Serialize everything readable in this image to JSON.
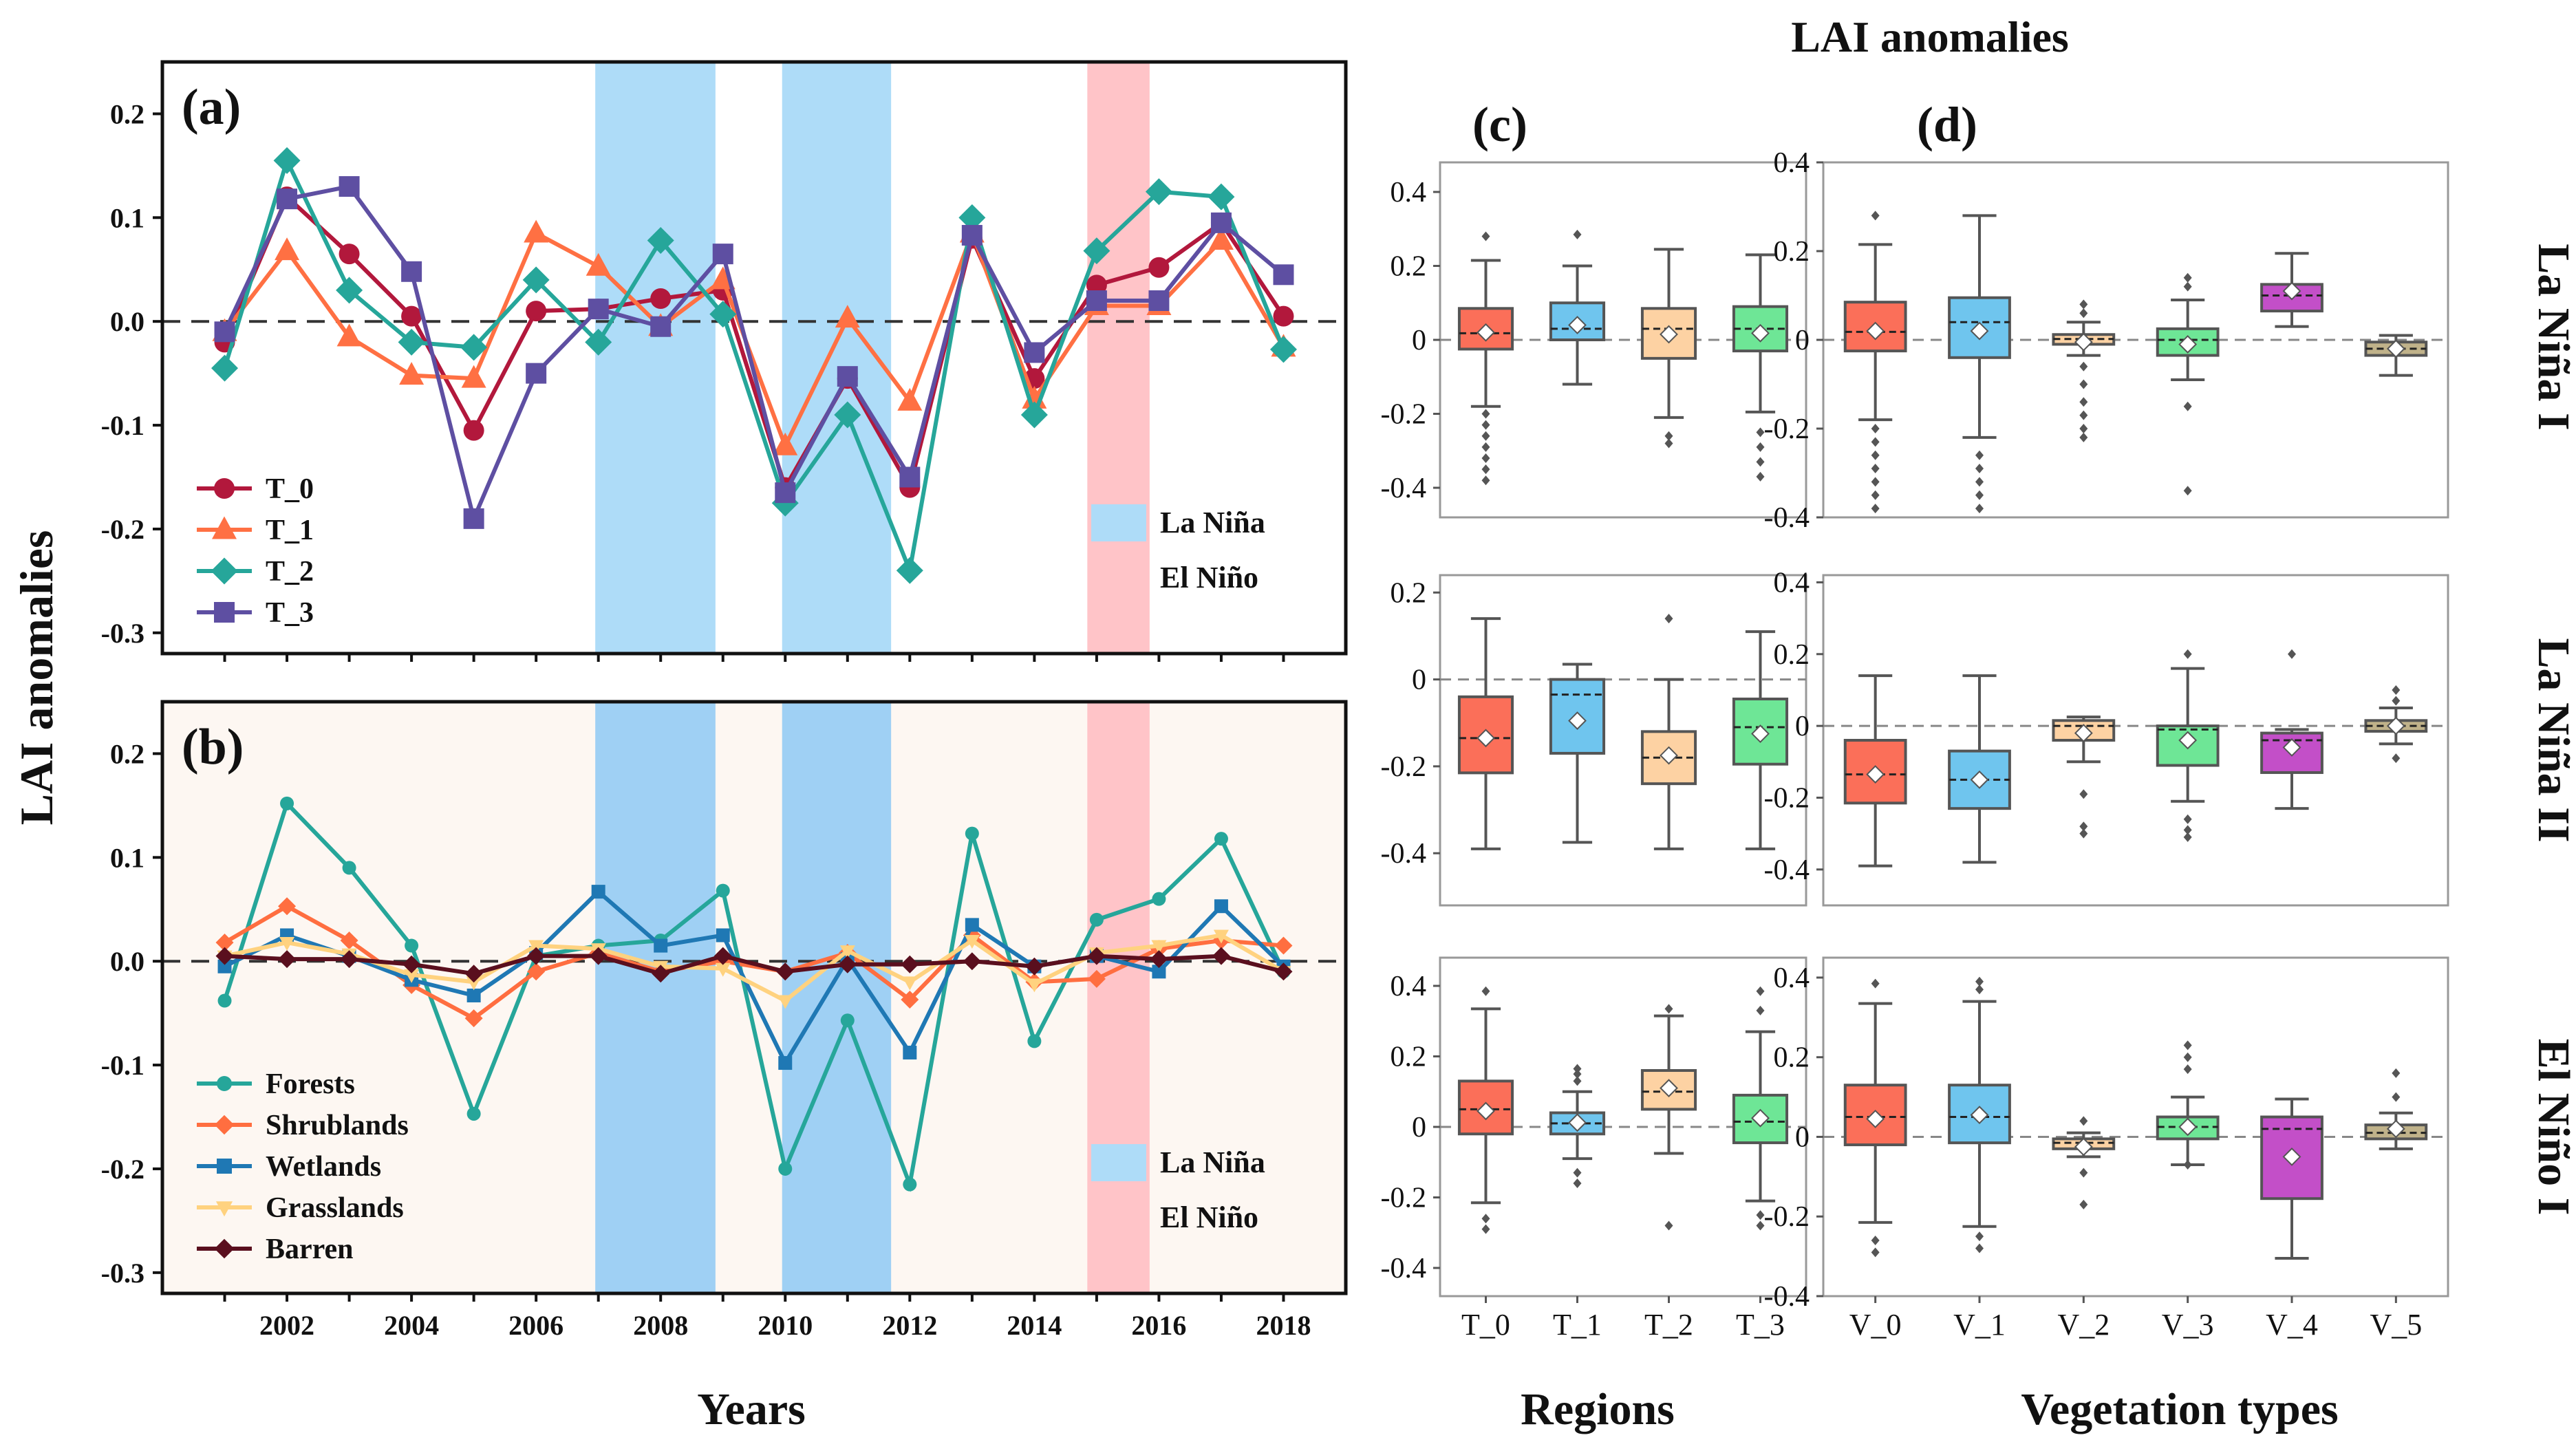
{
  "chart_data": [
    {
      "id": "a",
      "type": "line",
      "panel_label": "(a)",
      "x": [
        2001,
        2002,
        2003,
        2004,
        2005,
        2006,
        2007,
        2008,
        2009,
        2010,
        2011,
        2012,
        2013,
        2014,
        2015,
        2016,
        2017,
        2018
      ],
      "x_ticks": [
        "2002",
        "2004",
        "2006",
        "2008",
        "2010",
        "2012",
        "2014",
        "2016",
        "2018"
      ],
      "xlim": [
        2000,
        2019
      ],
      "ylim": [
        -0.32,
        0.25
      ],
      "y_ticks": [
        "0.2",
        "0.1",
        "0.0",
        "-0.1",
        "-0.2",
        "-0.3"
      ],
      "background": "#ffffff",
      "series": [
        {
          "name": "T_0",
          "color": "#b2183c",
          "marker": "circle",
          "values": [
            -0.02,
            0.12,
            0.065,
            0.005,
            -0.105,
            0.01,
            0.012,
            0.022,
            0.03,
            -0.16,
            -0.055,
            -0.16,
            0.08,
            -0.055,
            0.035,
            0.052,
            0.095,
            0.005
          ]
        },
        {
          "name": "T_1",
          "color": "#ff7043",
          "marker": "triangle",
          "values": [
            -0.01,
            0.068,
            -0.015,
            -0.052,
            -0.055,
            0.085,
            0.053,
            -0.005,
            0.04,
            -0.12,
            0.003,
            -0.077,
            0.085,
            -0.075,
            0.015,
            0.015,
            0.078,
            -0.025
          ]
        },
        {
          "name": "T_2",
          "color": "#26a69a",
          "marker": "diamond",
          "values": [
            -0.045,
            0.155,
            0.03,
            -0.02,
            -0.025,
            0.04,
            -0.02,
            0.078,
            0.007,
            -0.175,
            -0.09,
            -0.24,
            0.1,
            -0.09,
            0.068,
            0.125,
            0.12,
            -0.027
          ]
        },
        {
          "name": "T_3",
          "color": "#5e4fa2",
          "marker": "square",
          "values": [
            -0.01,
            0.118,
            0.13,
            0.048,
            -0.19,
            -0.05,
            0.012,
            -0.005,
            0.065,
            -0.165,
            -0.053,
            -0.15,
            0.083,
            -0.03,
            0.02,
            0.02,
            0.095,
            0.045
          ]
        }
      ],
      "shaded": [
        {
          "from": 2006.95,
          "to": 2008.88,
          "kind": "La Niña"
        },
        {
          "from": 2009.95,
          "to": 2011.7,
          "kind": "La Niña"
        },
        {
          "from": 2014.85,
          "to": 2015.85,
          "kind": "El Niño"
        }
      ],
      "legend": [
        "T_0",
        "T_1",
        "T_2",
        "T_3"
      ],
      "legend_position": "bottom-left",
      "shade_legend": [
        "La Niña",
        "El Niño"
      ],
      "shade_legend_position": "bottom-right"
    },
    {
      "id": "b",
      "type": "line",
      "panel_label": "(b)",
      "x": [
        2001,
        2002,
        2003,
        2004,
        2005,
        2006,
        2007,
        2008,
        2009,
        2010,
        2011,
        2012,
        2013,
        2014,
        2015,
        2016,
        2017,
        2018
      ],
      "x_ticks": [
        "2002",
        "2004",
        "2006",
        "2008",
        "2010",
        "2012",
        "2014",
        "2016",
        "2018"
      ],
      "xlim": [
        2000,
        2019
      ],
      "ylim": [
        -0.32,
        0.25
      ],
      "y_ticks": [
        "0.2",
        "0.1",
        "0.0",
        "-0.1",
        "-0.2",
        "-0.3"
      ],
      "background": "#fdf7f2",
      "series": [
        {
          "name": "Forests",
          "color": "#26a69a",
          "marker": "circle",
          "values": [
            -0.038,
            0.152,
            0.09,
            0.015,
            -0.147,
            0.005,
            0.015,
            0.02,
            0.068,
            -0.2,
            -0.057,
            -0.215,
            0.123,
            -0.077,
            0.04,
            0.06,
            0.118,
            -0.01
          ]
        },
        {
          "name": "Shrublands",
          "color": "#ff6e40",
          "marker": "diamond",
          "values": [
            0.018,
            0.053,
            0.02,
            -0.023,
            -0.055,
            -0.01,
            0.008,
            -0.01,
            0.0,
            -0.01,
            0.008,
            -0.037,
            0.025,
            -0.02,
            -0.017,
            0.012,
            0.02,
            0.015
          ]
        },
        {
          "name": "Wetlands",
          "color": "#1f78b4",
          "marker": "square",
          "values": [
            -0.005,
            0.025,
            0.005,
            -0.018,
            -0.033,
            0.008,
            0.067,
            0.015,
            0.025,
            -0.098,
            0.002,
            -0.088,
            0.035,
            -0.005,
            0.005,
            -0.01,
            0.053,
            -0.005
          ]
        },
        {
          "name": "Grasslands",
          "color": "#ffd27f",
          "marker": "triangle-down",
          "values": [
            0.005,
            0.018,
            0.007,
            -0.013,
            -0.02,
            0.015,
            0.012,
            -0.005,
            -0.007,
            -0.038,
            0.01,
            -0.02,
            0.02,
            -0.022,
            0.008,
            0.015,
            0.025,
            -0.01
          ]
        },
        {
          "name": "Barren",
          "color": "#5a0f1e",
          "marker": "diamond",
          "values": [
            0.005,
            0.002,
            0.002,
            -0.003,
            -0.012,
            0.005,
            0.005,
            -0.012,
            0.005,
            -0.01,
            -0.003,
            -0.003,
            0.0,
            -0.005,
            0.005,
            0.002,
            0.005,
            -0.01
          ]
        }
      ],
      "shaded": [
        {
          "from": 2006.95,
          "to": 2008.88,
          "kind": "La Niña"
        },
        {
          "from": 2009.95,
          "to": 2011.7,
          "kind": "La Niña"
        },
        {
          "from": 2014.85,
          "to": 2015.85,
          "kind": "El Niño"
        }
      ],
      "legend": [
        "Forests",
        "Shrublands",
        "Wetlands",
        "Grasslands",
        "Barren"
      ],
      "legend_position": "bottom-left",
      "shade_legend": [
        "La Niña",
        "El Niño"
      ],
      "shade_legend_position": "bottom-right"
    },
    {
      "id": "c",
      "type": "box",
      "panel_label": "(c)",
      "categories": [
        "T_0",
        "T_1",
        "T_2",
        "T_3"
      ],
      "colors": [
        "#fb6f59",
        "#6fc5ee",
        "#fdd2a3",
        "#6ee696"
      ],
      "xlabel": "Regions",
      "rows": [
        {
          "name": "La Niña I",
          "ylim": [
            -0.48,
            0.48
          ],
          "y_ticks": [
            "0.4",
            "0.2",
            "0",
            "-0.2",
            "-0.4"
          ],
          "boxes": [
            {
              "q1": -0.025,
              "median": 0.018,
              "q3": 0.085,
              "lo": -0.18,
              "hi": 0.215,
              "mean": 0.02,
              "outliers": [
                0.28,
                -0.2,
                -0.23,
                -0.26,
                -0.29,
                -0.32,
                -0.35,
                -0.38
              ]
            },
            {
              "q1": 0.0,
              "median": 0.03,
              "q3": 0.1,
              "lo": -0.12,
              "hi": 0.2,
              "mean": 0.04,
              "outliers": [
                0.285
              ]
            },
            {
              "q1": -0.05,
              "median": 0.03,
              "q3": 0.085,
              "lo": -0.21,
              "hi": 0.245,
              "mean": 0.015,
              "outliers": [
                -0.26,
                -0.28
              ]
            },
            {
              "q1": -0.03,
              "median": 0.03,
              "q3": 0.09,
              "lo": -0.195,
              "hi": 0.23,
              "mean": 0.018,
              "outliers": [
                -0.25,
                -0.29,
                -0.33,
                -0.37
              ]
            }
          ]
        },
        {
          "name": "La Niña II",
          "ylim": [
            -0.52,
            0.24
          ],
          "y_ticks": [
            "0.2",
            "0",
            "-0.2",
            "-0.4"
          ],
          "boxes": [
            {
              "q1": -0.215,
              "median": -0.135,
              "q3": -0.04,
              "lo": -0.39,
              "hi": 0.14,
              "mean": -0.135,
              "outliers": []
            },
            {
              "q1": -0.17,
              "median": -0.035,
              "q3": 0.0,
              "lo": -0.375,
              "hi": 0.035,
              "mean": -0.095,
              "outliers": []
            },
            {
              "q1": -0.24,
              "median": -0.18,
              "q3": -0.12,
              "lo": -0.39,
              "hi": 0.0,
              "mean": -0.175,
              "outliers": [
                0.14
              ]
            },
            {
              "q1": -0.195,
              "median": -0.11,
              "q3": -0.045,
              "lo": -0.39,
              "hi": 0.11,
              "mean": -0.125,
              "outliers": []
            }
          ]
        },
        {
          "name": "El Niño I",
          "ylim": [
            -0.48,
            0.48
          ],
          "y_ticks": [
            "0.4",
            "0.2",
            "0",
            "-0.2",
            "-0.4"
          ],
          "boxes": [
            {
              "q1": -0.02,
              "median": 0.05,
              "q3": 0.13,
              "lo": -0.215,
              "hi": 0.335,
              "mean": 0.045,
              "outliers": [
                0.385,
                -0.26,
                -0.29
              ]
            },
            {
              "q1": -0.02,
              "median": 0.01,
              "q3": 0.04,
              "lo": -0.09,
              "hi": 0.1,
              "mean": 0.012,
              "outliers": [
                0.13,
                0.15,
                0.165,
                -0.13,
                -0.16
              ]
            },
            {
              "q1": 0.05,
              "median": 0.1,
              "q3": 0.16,
              "lo": -0.075,
              "hi": 0.315,
              "mean": 0.11,
              "outliers": [
                0.335,
                -0.28
              ]
            },
            {
              "q1": -0.045,
              "median": 0.015,
              "q3": 0.09,
              "lo": -0.21,
              "hi": 0.27,
              "mean": 0.025,
              "outliers": [
                0.33,
                0.385,
                -0.25,
                -0.28
              ]
            }
          ]
        }
      ]
    },
    {
      "id": "d",
      "type": "box",
      "panel_label": "(d)",
      "categories": [
        "V_0",
        "V_1",
        "V_2",
        "V_3",
        "V_4",
        "V_5"
      ],
      "colors": [
        "#fb6f59",
        "#6fc5ee",
        "#fdd2a3",
        "#6ee696",
        "#c34fc8",
        "#c0b28a"
      ],
      "xlabel": "Vegetation types",
      "rows": [
        {
          "name": "La Niña I",
          "ylim": [
            -0.4,
            0.4
          ],
          "y_ticks": [
            "0.4",
            "0.2",
            "0",
            "-0.2",
            "-0.4"
          ],
          "boxes": [
            {
              "q1": -0.025,
              "median": 0.018,
              "q3": 0.085,
              "lo": -0.18,
              "hi": 0.215,
              "mean": 0.02,
              "outliers": [
                0.28,
                -0.2,
                -0.23,
                -0.26,
                -0.29,
                -0.32,
                -0.35,
                -0.38
              ]
            },
            {
              "q1": -0.04,
              "median": 0.04,
              "q3": 0.095,
              "lo": -0.22,
              "hi": 0.28,
              "mean": 0.02,
              "outliers": [
                -0.26,
                -0.29,
                -0.32,
                -0.35,
                -0.38
              ]
            },
            {
              "q1": -0.01,
              "median": 0.002,
              "q3": 0.012,
              "lo": -0.035,
              "hi": 0.04,
              "mean": -0.005,
              "outliers": [
                0.06,
                0.08,
                -0.06,
                -0.1,
                -0.14,
                -0.17,
                -0.2,
                -0.22
              ]
            },
            {
              "q1": -0.035,
              "median": 0.0,
              "q3": 0.025,
              "lo": -0.09,
              "hi": 0.09,
              "mean": -0.01,
              "outliers": [
                0.12,
                0.14,
                -0.15,
                -0.34
              ]
            },
            {
              "q1": 0.065,
              "median": 0.1,
              "q3": 0.125,
              "lo": 0.03,
              "hi": 0.195,
              "mean": 0.11,
              "outliers": []
            },
            {
              "q1": -0.035,
              "median": -0.02,
              "q3": -0.005,
              "lo": -0.08,
              "hi": 0.01,
              "mean": -0.02,
              "outliers": []
            }
          ]
        },
        {
          "name": "La Niña II",
          "ylim": [
            -0.5,
            0.42
          ],
          "y_ticks": [
            "0.4",
            "0.2",
            "0",
            "-0.2",
            "-0.4"
          ],
          "boxes": [
            {
              "q1": -0.215,
              "median": -0.135,
              "q3": -0.04,
              "lo": -0.39,
              "hi": 0.14,
              "mean": -0.135,
              "outliers": []
            },
            {
              "q1": -0.23,
              "median": -0.15,
              "q3": -0.07,
              "lo": -0.38,
              "hi": 0.14,
              "mean": -0.15,
              "outliers": []
            },
            {
              "q1": -0.04,
              "median": 0.0,
              "q3": 0.015,
              "lo": -0.1,
              "hi": 0.025,
              "mean": -0.02,
              "outliers": [
                -0.19,
                -0.28,
                -0.3
              ]
            },
            {
              "q1": -0.11,
              "median": -0.01,
              "q3": 0.0,
              "lo": -0.21,
              "hi": 0.16,
              "mean": -0.04,
              "outliers": [
                0.2,
                -0.26,
                -0.29,
                -0.31
              ]
            },
            {
              "q1": -0.13,
              "median": -0.04,
              "q3": -0.02,
              "lo": -0.23,
              "hi": -0.01,
              "mean": -0.06,
              "outliers": [
                0.2
              ]
            },
            {
              "q1": -0.015,
              "median": 0.0,
              "q3": 0.015,
              "lo": -0.05,
              "hi": 0.05,
              "mean": 0.0,
              "outliers": [
                0.07,
                0.1,
                -0.09
              ]
            }
          ]
        },
        {
          "name": "El Niño I",
          "ylim": [
            -0.4,
            0.45
          ],
          "y_ticks": [
            "0.4",
            "0.2",
            "0",
            "-0.2",
            "-0.4"
          ],
          "boxes": [
            {
              "q1": -0.02,
              "median": 0.05,
              "q3": 0.13,
              "lo": -0.215,
              "hi": 0.335,
              "mean": 0.045,
              "outliers": [
                0.385,
                -0.26,
                -0.29
              ]
            },
            {
              "q1": -0.015,
              "median": 0.05,
              "q3": 0.13,
              "lo": -0.225,
              "hi": 0.34,
              "mean": 0.055,
              "outliers": [
                0.37,
                0.39,
                -0.25,
                -0.28
              ]
            },
            {
              "q1": -0.03,
              "median": -0.015,
              "q3": -0.005,
              "lo": -0.05,
              "hi": 0.01,
              "mean": -0.025,
              "outliers": [
                0.04,
                -0.09,
                -0.17
              ]
            },
            {
              "q1": -0.005,
              "median": 0.025,
              "q3": 0.05,
              "lo": -0.07,
              "hi": 0.1,
              "mean": 0.025,
              "outliers": [
                0.17,
                0.2,
                0.23,
                -0.07
              ]
            },
            {
              "q1": -0.155,
              "median": 0.02,
              "q3": 0.05,
              "lo": -0.305,
              "hi": 0.095,
              "mean": -0.05,
              "outliers": []
            },
            {
              "q1": -0.005,
              "median": 0.01,
              "q3": 0.03,
              "lo": -0.03,
              "hi": 0.06,
              "mean": 0.02,
              "outliers": [
                0.1,
                0.16
              ]
            }
          ]
        }
      ]
    }
  ],
  "figure": {
    "title": "LAI anomalies",
    "ylabel": "LAI anomalies",
    "xlabel_years": "Years",
    "xlabel_regions": "Regions",
    "xlabel_vegetation": "Vegetation types",
    "row_labels": [
      "La Niña I",
      "La Niña II",
      "El Niño I"
    ],
    "la_nina_color": "#aedcf8",
    "la_nina_color_b": "#9fd0f4",
    "el_nino_color": "#ffc4c8"
  }
}
